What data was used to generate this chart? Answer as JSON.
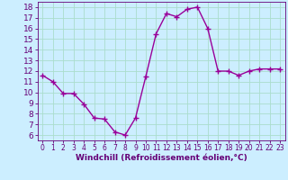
{
  "x": [
    0,
    1,
    2,
    3,
    4,
    5,
    6,
    7,
    8,
    9,
    10,
    11,
    12,
    13,
    14,
    15,
    16,
    17,
    18,
    19,
    20,
    21,
    22,
    23
  ],
  "y": [
    11.6,
    11.0,
    9.9,
    9.9,
    8.9,
    7.6,
    7.5,
    6.3,
    6.0,
    7.6,
    11.5,
    15.5,
    17.4,
    17.1,
    17.8,
    18.0,
    16.0,
    12.0,
    12.0,
    11.6,
    12.0,
    12.2,
    12.2,
    12.2
  ],
  "line_color": "#990099",
  "marker": "+",
  "marker_size": 4,
  "marker_linewidth": 1.0,
  "xlim": [
    -0.5,
    23.5
  ],
  "ylim": [
    5.5,
    18.5
  ],
  "yticks": [
    6,
    7,
    8,
    9,
    10,
    11,
    12,
    13,
    14,
    15,
    16,
    17,
    18
  ],
  "xticks": [
    0,
    1,
    2,
    3,
    4,
    5,
    6,
    7,
    8,
    9,
    10,
    11,
    12,
    13,
    14,
    15,
    16,
    17,
    18,
    19,
    20,
    21,
    22,
    23
  ],
  "xlabel": "Windchill (Refroidissement éolien,°C)",
  "background_color": "#cceeff",
  "grid_color": "#aaddcc",
  "axis_color": "#660077",
  "tick_color": "#660077",
  "label_color": "#660077",
  "xlabel_fontsize": 6.5,
  "ytick_fontsize": 6.5,
  "xtick_fontsize": 5.5,
  "line_width": 1.0
}
